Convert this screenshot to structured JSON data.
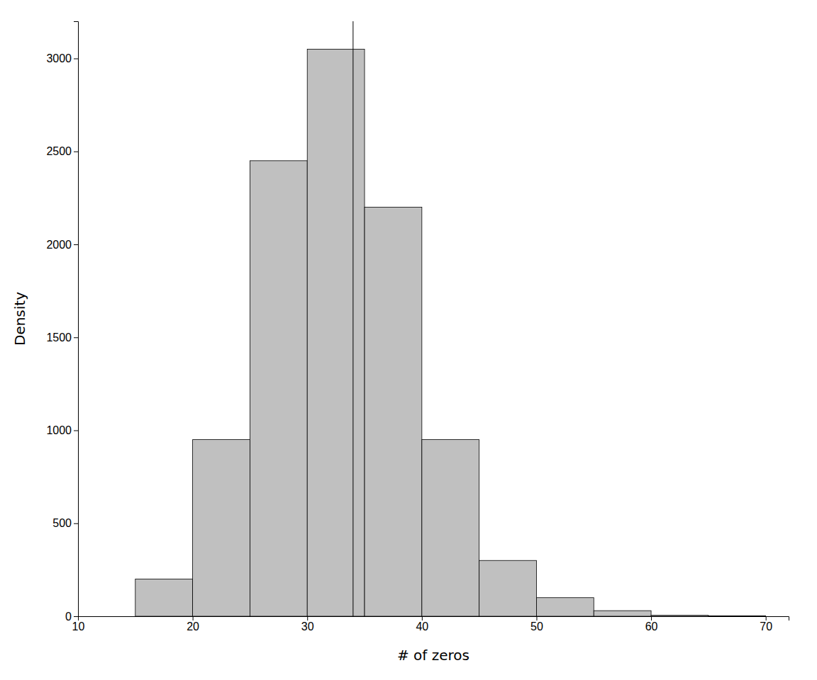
{
  "chart_data": {
    "type": "histogram",
    "xlabel": "# of zeros",
    "ylabel": "Density",
    "bins": [
      15,
      20,
      25,
      30,
      35,
      40,
      45,
      50,
      55,
      60,
      65,
      70
    ],
    "values": [
      200,
      950,
      2450,
      3050,
      2200,
      950,
      300,
      100,
      30,
      5,
      2
    ],
    "color": "#c0c0c0",
    "vline_x": 34,
    "xlim": [
      10,
      72
    ],
    "ylim": [
      0,
      3200
    ],
    "xticks": [
      10,
      20,
      30,
      40,
      50,
      60,
      70
    ],
    "yticks": [
      0,
      500,
      1000,
      1500,
      2000,
      2500,
      3000
    ],
    "grid": false
  }
}
